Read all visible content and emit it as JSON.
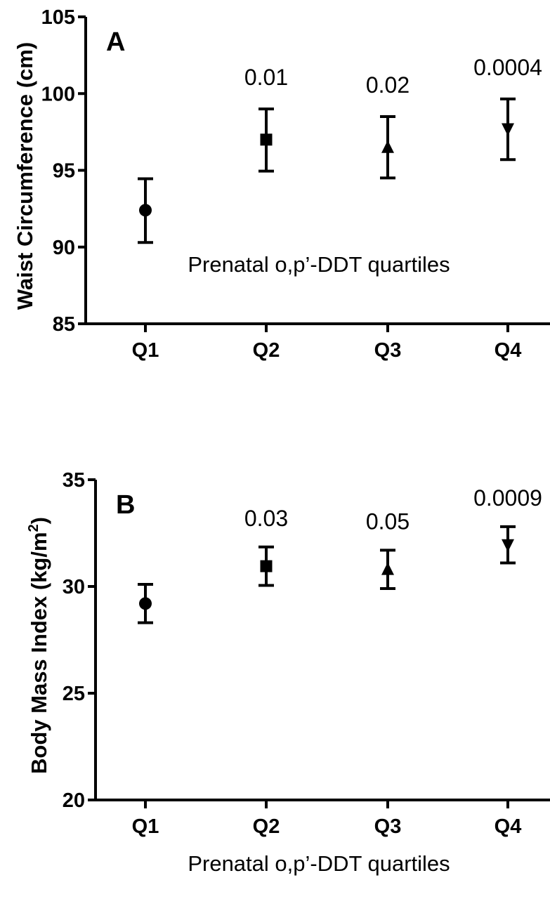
{
  "chart_data": [
    {
      "type": "scatter",
      "panel_label": "A",
      "categories": [
        "Q1",
        "Q2",
        "Q3",
        "Q4"
      ],
      "markers": [
        "circle",
        "square",
        "triangle-up",
        "triangle-down"
      ],
      "values": [
        92.4,
        97.0,
        96.5,
        97.7
      ],
      "error_low": [
        90.3,
        94.95,
        94.5,
        95.7
      ],
      "error_high": [
        94.45,
        99.0,
        98.5,
        99.65
      ],
      "annotations": [
        "",
        "0.01",
        "0.02",
        "0.0004"
      ],
      "xlabel": "Prenatal o,p’-DDT quartiles",
      "ylabel": "Waist Circumference (cm)",
      "ylim": [
        85,
        105
      ],
      "yticks": [
        85,
        90,
        95,
        100,
        105
      ],
      "grid": false
    },
    {
      "type": "scatter",
      "panel_label": "B",
      "categories": [
        "Q1",
        "Q2",
        "Q3",
        "Q4"
      ],
      "markers": [
        "circle",
        "square",
        "triangle-up",
        "triangle-down"
      ],
      "values": [
        29.2,
        30.95,
        30.8,
        31.95
      ],
      "error_low": [
        28.3,
        30.05,
        29.9,
        31.1
      ],
      "error_high": [
        30.1,
        31.85,
        31.7,
        32.8
      ],
      "annotations": [
        "",
        "0.03",
        "0.05",
        "0.0009"
      ],
      "xlabel": "Prenatal o,p’-DDT quartiles",
      "ylabel": "Body Mass Index  (kg/m",
      "ylabel_superscript": "2",
      "ylabel_suffix": ")",
      "ylim": [
        20,
        35
      ],
      "yticks": [
        20,
        25,
        30,
        35
      ],
      "grid": false
    }
  ]
}
